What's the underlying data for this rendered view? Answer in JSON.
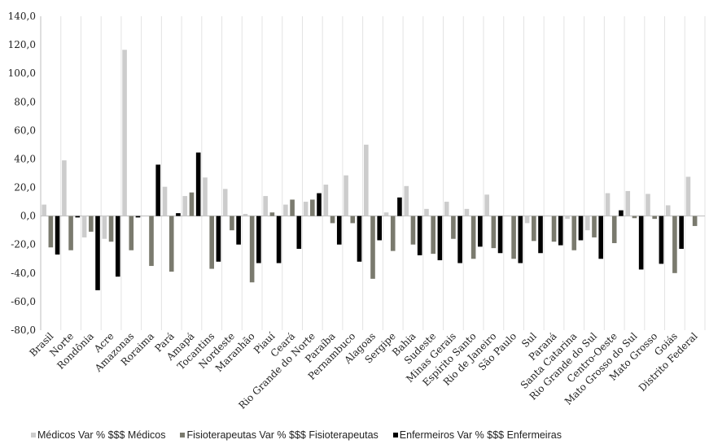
{
  "chart_data": {
    "type": "bar",
    "title": "",
    "xlabel": "",
    "ylabel": "",
    "ylim": [
      -80,
      140
    ],
    "yticks": [
      -80,
      -60,
      -40,
      -20,
      0,
      20,
      40,
      60,
      80,
      100,
      120,
      140
    ],
    "ytick_labels": [
      "-80,0",
      "-60,0",
      "-40,0",
      "-20,0",
      "0,0",
      "20,0",
      "40,0",
      "60,0",
      "80,0",
      "100,0",
      "120,0",
      "140,0"
    ],
    "grid": "vertical lines between categories",
    "legend_position": "bottom",
    "categories": [
      "Brasil",
      "Norte",
      "Rondônia",
      "Acre",
      "Amazonas",
      "Roraima",
      "Pará",
      "Amapá",
      "Tocantins",
      "Nordeste",
      "Maranhão",
      "Piauí",
      "Ceará",
      "Rio Grande do Norte",
      "Paraíba",
      "Pernambuco",
      "Alagoas",
      "Sergipe",
      "Bahia",
      "Sudeste",
      "Minas Gerais",
      "Espírito Santo",
      "Rio de Janeiro",
      "São Paulo",
      "Sul",
      "Paraná",
      "Santa Catarina",
      "Rio Grande do Sul",
      "Centro-Oeste",
      "Mato Grosso do Sul",
      "Mato Grosso",
      "Goiás",
      "Distrito Federal"
    ],
    "series": [
      {
        "name": "Médicos Var % $$$ Médicos",
        "color": "#cccccc",
        "values": [
          8.0,
          39.0,
          -15.0,
          -16.0,
          116.5,
          0.0,
          20.5,
          14.0,
          27.0,
          19.0,
          1.5,
          14.0,
          8.0,
          10.0,
          22.0,
          28.5,
          50.0,
          2.5,
          21.0,
          5.0,
          10.0,
          5.0,
          15.0,
          0.0,
          -5.0,
          0.0,
          -2.0,
          -10.0,
          16.0,
          17.5,
          15.5,
          7.5,
          27.5
        ]
      },
      {
        "name": "Fisioterapeutas Var % $$$ Fisioterapeutas",
        "color": "#7a7a6e",
        "values": [
          -22.0,
          -24.0,
          -11.0,
          -18.0,
          -24.0,
          -35.0,
          -39.0,
          16.5,
          -37.0,
          -10.0,
          -46.5,
          2.5,
          11.5,
          11.5,
          -5.0,
          -5.0,
          -44.0,
          -24.5,
          -20.0,
          -26.5,
          -16.0,
          -30.0,
          -22.5,
          -30.0,
          -17.5,
          -18.0,
          -24.0,
          -15.0,
          -19.0,
          -1.5,
          -2.0,
          -40.0,
          -7.0
        ]
      },
      {
        "name": "Enfermeiros Var % $$$ Enfermeiras",
        "color": "#000000",
        "values": [
          -27.0,
          -1.0,
          -52.0,
          -42.5,
          -1.0,
          36.0,
          2.0,
          44.5,
          -32.0,
          -20.0,
          -33.0,
          -33.0,
          -23.0,
          16.0,
          -20.0,
          -32.0,
          -17.0,
          13.0,
          -27.5,
          -31.0,
          -33.0,
          -21.5,
          -26.0,
          -33.0,
          -26.0,
          -20.5,
          -17.0,
          -30.0,
          4.0,
          -37.5,
          -33.5,
          -23.0,
          0.0
        ]
      }
    ]
  },
  "legend": [
    {
      "label": "Médicos Var % $$$ Médicos",
      "color": "#cccccc"
    },
    {
      "label": "Fisioterapeutas Var % $$$ Fisioterapeutas",
      "color": "#7a7a6e"
    },
    {
      "label": "Enfermeiros Var % $$$ Enfermeiras",
      "color": "#000000"
    }
  ]
}
